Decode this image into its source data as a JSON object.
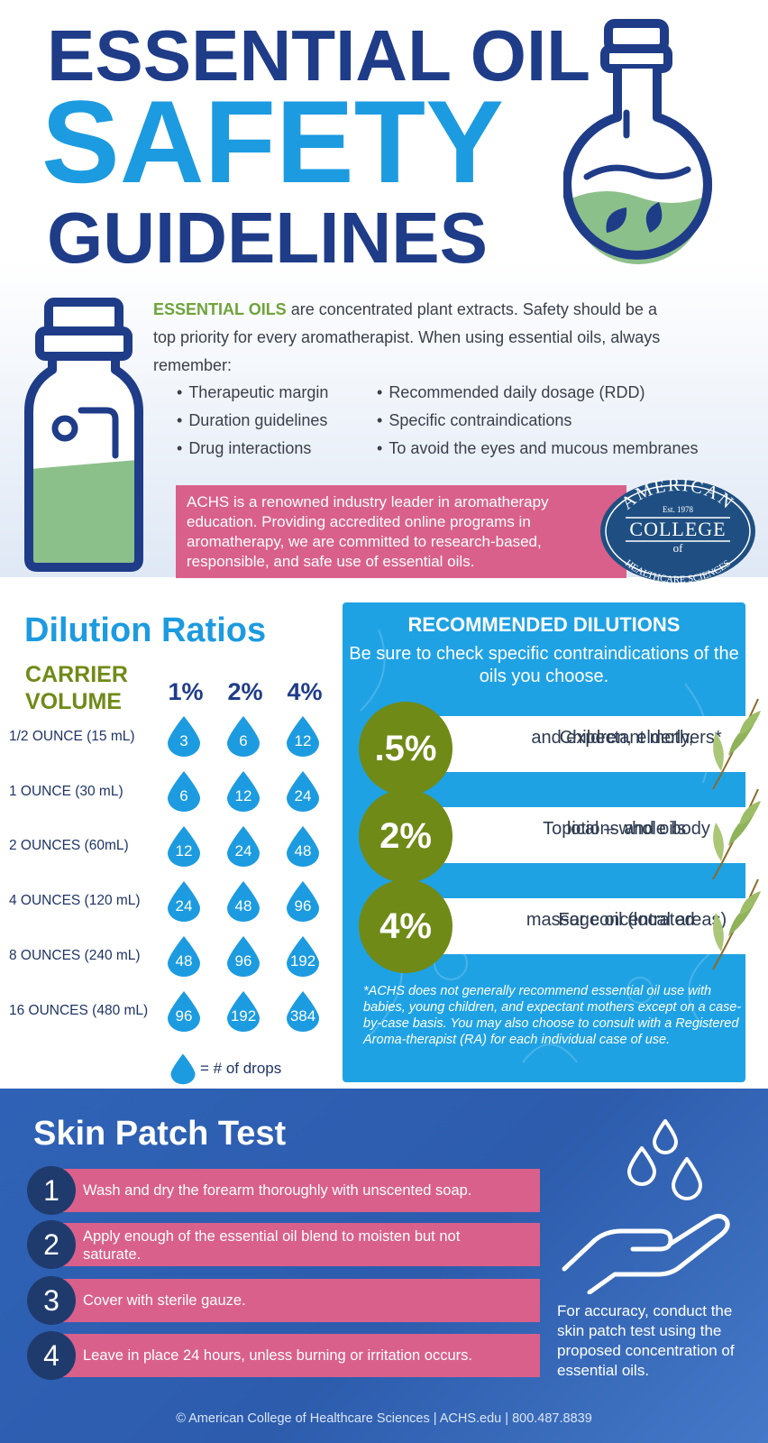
{
  "header": {
    "title_line1": "ESSENTIAL OIL",
    "title_line2": "SAFETY",
    "title_line3": "GUIDELINES"
  },
  "intro": {
    "highlight": "ESSENTIAL OILS",
    "text": " are concentrated plant extracts. Safety should be a top priority for every aromatherapist. When using essential oils, always remember:",
    "bullets_left": [
      "Therapeutic margin",
      "Duration guidelines",
      "Drug interactions"
    ],
    "bullets_right": [
      "Recommended daily dosage (RDD)",
      "Specific contraindications",
      "To avoid the eyes and mucous membranes"
    ]
  },
  "achs_box": {
    "text": "ACHS is a renowned industry leader in aromatherapy education. Providing accredited online programs in aromatherapy, we are committed to research-based, responsible, and safe use of essential oils."
  },
  "seal": {
    "top": "AMERICAN",
    "est": "Est. 1978",
    "middle": "COLLEGE",
    "of": "of",
    "bottom": "HEALTHCARE SCIENCES"
  },
  "dilution": {
    "title": "Dilution Ratios",
    "carrier_line1": "CARRIER",
    "carrier_line2": "VOLUME",
    "percent_headers": [
      "1%",
      "2%",
      "4%"
    ],
    "rows": [
      {
        "label": "1/2 OUNCE (15 mL)",
        "values": [
          "3",
          "6",
          "12"
        ]
      },
      {
        "label": "1 OUNCE (30 mL)",
        "values": [
          "6",
          "12",
          "24"
        ]
      },
      {
        "label": "2 OUNCES (60mL)",
        "values": [
          "12",
          "24",
          "48"
        ]
      },
      {
        "label": "4 OUNCES (120 mL)",
        "values": [
          "24",
          "48",
          "96"
        ]
      },
      {
        "label": "8 OUNCES (240 mL)",
        "values": [
          "48",
          "96",
          "192"
        ]
      },
      {
        "label": "16 OUNCES (480 mL)",
        "values": [
          "96",
          "192",
          "384"
        ]
      }
    ],
    "legend": "=  # of drops",
    "drop_color": "#1c9be0"
  },
  "recommended": {
    "title": "RECOMMENDED DILUTIONS",
    "subtitle": "Be sure to check specific contraindications of the oils you choose.",
    "items": [
      {
        "percent": ".5%",
        "line1": "Children, elderly,",
        "line2": "and expectant mothers*"
      },
      {
        "percent": "2%",
        "line1": "Topical – whole body",
        "line2": "lotions and oils"
      },
      {
        "percent": "4%",
        "line1": "For concentrated",
        "line2": "massage oil (local areas)"
      }
    ],
    "note": "*ACHS does not generally recommend essential oil use with babies, young children, and expectant mothers except on a case-by-case basis. You may also choose to consult with a Registered Aroma-therapist (RA) for each individual case of use."
  },
  "skin_patch": {
    "title": "Skin Patch Test",
    "steps": [
      {
        "num": "1",
        "text": "Wash and dry the forearm thoroughly with unscented soap."
      },
      {
        "num": "2",
        "text": "Apply enough of the essential oil blend to moisten but not saturate."
      },
      {
        "num": "3",
        "text": "Cover with sterile gauze."
      },
      {
        "num": "4",
        "text": "Leave in place 24 hours, unless burning or irritation occurs."
      }
    ],
    "note": "For accuracy, conduct the skin patch test using the proposed concentration of essential oils."
  },
  "footer": "© American College of Healthcare Sciences | ACHS.edu | 800.487.8839",
  "colors": {
    "navy": "#1f3c88",
    "sky": "#1c9be0",
    "olive": "#6f8a17",
    "pink": "#d9608a",
    "green_liquid": "#8cc08a"
  }
}
